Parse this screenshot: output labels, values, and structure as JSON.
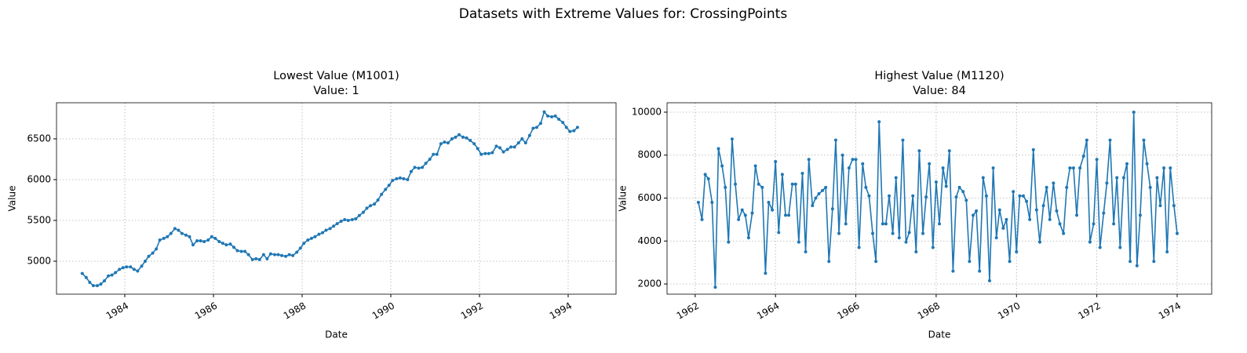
{
  "title": "Datasets with Extreme Values for: CrossingPoints",
  "chart_data": [
    {
      "type": "line",
      "title": "Lowest Value (M1001)",
      "subtitle": "Value: 1",
      "xlabel": "Date",
      "ylabel": "Value",
      "grid": true,
      "color": "#1f77b4",
      "xlim": [
        1982.46,
        1995.08
      ],
      "xticks": [
        1984,
        1986,
        1988,
        1990,
        1992,
        1994
      ],
      "ylim": [
        4596,
        6942
      ],
      "yticks": [
        5000,
        5500,
        6000,
        6500
      ],
      "x": [
        1983.04,
        1983.13,
        1983.21,
        1983.29,
        1983.38,
        1983.46,
        1983.54,
        1983.63,
        1983.71,
        1983.79,
        1983.88,
        1983.96,
        1984.04,
        1984.13,
        1984.21,
        1984.29,
        1984.38,
        1984.46,
        1984.54,
        1984.63,
        1984.71,
        1984.79,
        1984.88,
        1984.96,
        1985.04,
        1985.13,
        1985.21,
        1985.29,
        1985.38,
        1985.46,
        1985.54,
        1985.63,
        1985.71,
        1985.79,
        1985.88,
        1985.96,
        1986.04,
        1986.13,
        1986.21,
        1986.29,
        1986.38,
        1986.46,
        1986.54,
        1986.63,
        1986.71,
        1986.79,
        1986.88,
        1986.96,
        1987.04,
        1987.13,
        1987.21,
        1987.29,
        1987.38,
        1987.46,
        1987.54,
        1987.63,
        1987.71,
        1987.79,
        1987.88,
        1987.96,
        1988.04,
        1988.13,
        1988.21,
        1988.29,
        1988.38,
        1988.46,
        1988.54,
        1988.63,
        1988.71,
        1988.79,
        1988.88,
        1988.96,
        1989.04,
        1989.13,
        1989.21,
        1989.29,
        1989.38,
        1989.46,
        1989.54,
        1989.63,
        1989.71,
        1989.79,
        1989.88,
        1989.96,
        1990.04,
        1990.13,
        1990.21,
        1990.29,
        1990.38,
        1990.46,
        1990.54,
        1990.63,
        1990.71,
        1990.79,
        1990.88,
        1990.96,
        1991.04,
        1991.13,
        1991.21,
        1991.29,
        1991.38,
        1991.46,
        1991.54,
        1991.63,
        1991.71,
        1991.79,
        1991.88,
        1991.96,
        1992.04,
        1992.13,
        1992.21,
        1992.29,
        1992.38,
        1992.46,
        1992.54,
        1992.63,
        1992.71,
        1992.79,
        1992.88,
        1992.96,
        1993.04,
        1993.13,
        1993.21,
        1993.29,
        1993.38,
        1993.46,
        1993.54,
        1993.63,
        1993.71,
        1993.79,
        1993.88,
        1993.96,
        1994.04,
        1994.13,
        1994.21
      ],
      "values": [
        4850,
        4800,
        4740,
        4700,
        4700,
        4720,
        4760,
        4820,
        4830,
        4860,
        4900,
        4920,
        4930,
        4930,
        4900,
        4880,
        4940,
        5000,
        5060,
        5100,
        5150,
        5260,
        5280,
        5300,
        5340,
        5400,
        5380,
        5340,
        5320,
        5300,
        5200,
        5250,
        5250,
        5240,
        5260,
        5300,
        5280,
        5240,
        5220,
        5200,
        5210,
        5170,
        5130,
        5120,
        5120,
        5080,
        5020,
        5030,
        5020,
        5080,
        5030,
        5090,
        5080,
        5080,
        5070,
        5060,
        5080,
        5070,
        5110,
        5160,
        5220,
        5260,
        5280,
        5300,
        5330,
        5350,
        5380,
        5400,
        5430,
        5460,
        5490,
        5510,
        5500,
        5510,
        5520,
        5560,
        5600,
        5650,
        5680,
        5700,
        5750,
        5820,
        5880,
        5930,
        5990,
        6010,
        6020,
        6010,
        6000,
        6100,
        6150,
        6140,
        6150,
        6200,
        6250,
        6310,
        6310,
        6440,
        6460,
        6450,
        6500,
        6520,
        6550,
        6520,
        6510,
        6480,
        6440,
        6380,
        6310,
        6320,
        6320,
        6330,
        6410,
        6390,
        6340,
        6370,
        6400,
        6400,
        6450,
        6500,
        6450,
        6540,
        6630,
        6640,
        6690,
        6830,
        6780,
        6770,
        6780,
        6740,
        6700,
        6640,
        6590,
        6600,
        6640
      ]
    },
    {
      "type": "line",
      "title": "Highest Value (M1120)",
      "subtitle": "Value: 84",
      "xlabel": "Date",
      "ylabel": "Value",
      "grid": true,
      "color": "#1f77b4",
      "xlim": [
        1961.3,
        1974.86
      ],
      "xticks": [
        1962,
        1964,
        1966,
        1968,
        1970,
        1972,
        1974
      ],
      "ylim": [
        1526,
        10438
      ],
      "yticks": [
        2000,
        4000,
        6000,
        8000,
        10000
      ],
      "x": [
        1962.08,
        1962.17,
        1962.25,
        1962.33,
        1962.42,
        1962.5,
        1962.58,
        1962.67,
        1962.75,
        1962.83,
        1962.92,
        1963.0,
        1963.08,
        1963.17,
        1963.25,
        1963.33,
        1963.42,
        1963.5,
        1963.58,
        1963.67,
        1963.75,
        1963.83,
        1963.92,
        1964.0,
        1964.08,
        1964.17,
        1964.25,
        1964.33,
        1964.42,
        1964.5,
        1964.58,
        1964.67,
        1964.75,
        1964.83,
        1964.92,
        1965.0,
        1965.08,
        1965.17,
        1965.25,
        1965.33,
        1965.42,
        1965.5,
        1965.58,
        1965.67,
        1965.75,
        1965.83,
        1965.92,
        1966.0,
        1966.08,
        1966.17,
        1966.25,
        1966.33,
        1966.42,
        1966.5,
        1966.58,
        1966.67,
        1966.75,
        1966.83,
        1966.92,
        1967.0,
        1967.08,
        1967.17,
        1967.25,
        1967.33,
        1967.42,
        1967.5,
        1967.58,
        1967.67,
        1967.75,
        1967.83,
        1967.92,
        1968.0,
        1968.08,
        1968.17,
        1968.25,
        1968.33,
        1968.42,
        1968.5,
        1968.58,
        1968.67,
        1968.75,
        1968.83,
        1968.92,
        1969.0,
        1969.08,
        1969.17,
        1969.25,
        1969.33,
        1969.42,
        1969.5,
        1969.58,
        1969.67,
        1969.75,
        1969.83,
        1969.92,
        1970.0,
        1970.08,
        1970.17,
        1970.25,
        1970.33,
        1970.42,
        1970.5,
        1970.58,
        1970.67,
        1970.75,
        1970.83,
        1970.92,
        1971.0,
        1971.08,
        1971.17,
        1971.25,
        1971.33,
        1971.42,
        1971.5,
        1971.58,
        1971.67,
        1971.75,
        1971.83,
        1971.92,
        1972.0,
        1972.08,
        1972.17,
        1972.25,
        1972.33,
        1972.42,
        1972.5,
        1972.58,
        1972.67,
        1972.75,
        1972.83,
        1972.92,
        1973.0,
        1973.08,
        1973.17,
        1973.25,
        1973.33,
        1973.42,
        1973.5,
        1973.58,
        1973.67,
        1973.75,
        1973.83,
        1973.92,
        1974.0
      ],
      "values": [
        5800,
        5000,
        7100,
        6900,
        5800,
        1850,
        8300,
        7500,
        6500,
        3950,
        8750,
        6650,
        5000,
        5450,
        5200,
        4150,
        5300,
        7500,
        6650,
        6500,
        2500,
        5800,
        5450,
        7700,
        4400,
        7100,
        5200,
        5200,
        6650,
        6650,
        3950,
        7150,
        3500,
        7800,
        5650,
        6000,
        6200,
        6350,
        6500,
        3050,
        5500,
        8700,
        4350,
        8000,
        4800,
        7400,
        7800,
        7800,
        3700,
        7600,
        6500,
        6100,
        4350,
        3050,
        9550,
        4800,
        4800,
        6100,
        4350,
        6950,
        4150,
        8700,
        3950,
        4400,
        6100,
        3500,
        8200,
        4350,
        6050,
        7600,
        3700,
        6750,
        4800,
        7400,
        6550,
        8200,
        2600,
        6050,
        6500,
        6300,
        5900,
        3050,
        5200,
        5400,
        2600,
        6950,
        6100,
        2150,
        7400,
        4150,
        5450,
        4600,
        5000,
        3050,
        6300,
        3500,
        6100,
        6100,
        5850,
        5000,
        8250,
        5450,
        3950,
        5650,
        6500,
        5000,
        6700,
        5400,
        4800,
        4350,
        6500,
        7400,
        7400,
        5200,
        7400,
        7950,
        8700,
        3950,
        4800,
        7800,
        3700,
        5300,
        6700,
        8700,
        4800,
        6950,
        3700,
        6950,
        7600,
        3050,
        10000,
        2850,
        5200,
        8700,
        7600,
        6500,
        3050,
        6950,
        5650,
        7400,
        3500,
        7400,
        5650,
        4350
      ]
    }
  ]
}
